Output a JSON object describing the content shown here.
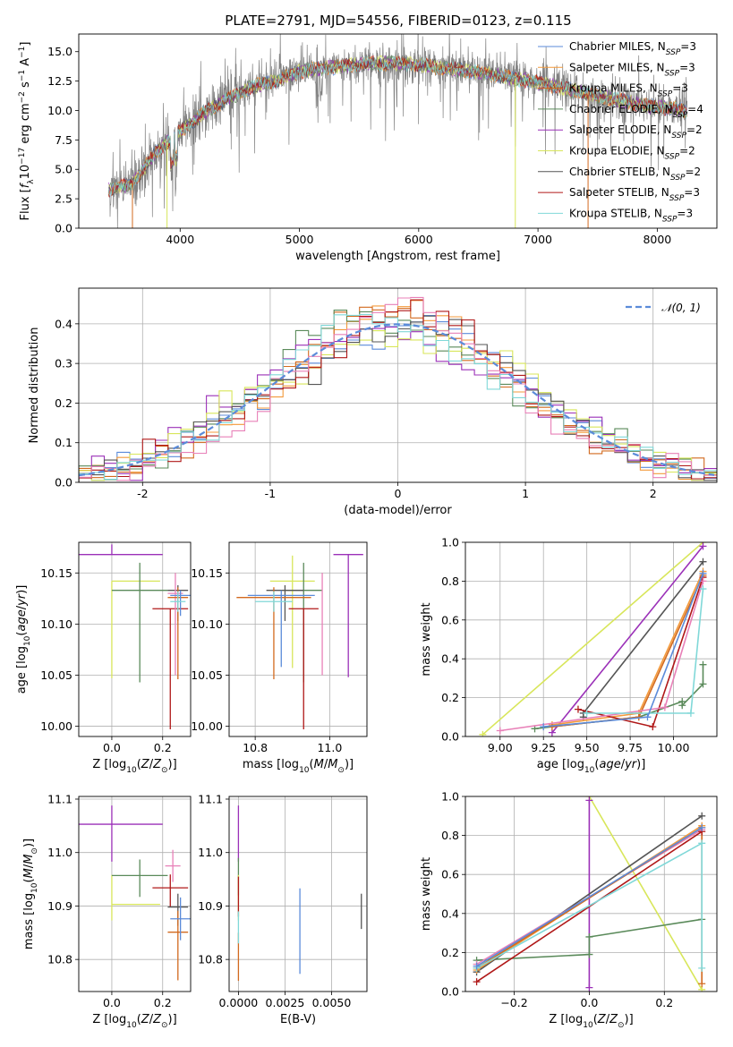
{
  "figure": {
    "title": "PLATE=2791, MJD=54556, FIBERID=0123, z=0.115"
  },
  "colors": {
    "Chabrier MILES": "#5b8bd9",
    "Salpeter MILES": "#f39a3b",
    "Kroupa MILES": "#d2691e",
    "Chabrier ELODIE": "#5a8a5a",
    "Salpeter ELODIE": "#9b30b8",
    "Kroupa ELODIE": "#d8e65a",
    "Chabrier STELIB": "#555555",
    "Salpeter STELIB": "#b01818",
    "Kroupa STELIB": "#80d8d8",
    "Pink": "#e880b8",
    "Normal": "#5b8bd9",
    "Data": "#808080"
  },
  "chart_data": [
    {
      "id": "spectrum",
      "type": "line",
      "xlabel": "wavelength [Angstrom, rest frame]",
      "ylabel": "Flux [f_λ10^-17 erg cm^-2 s^-1 A^-1]",
      "xlim": [
        3150,
        8500
      ],
      "ylim": [
        0,
        16.5
      ],
      "xticks": [
        4000,
        5000,
        6000,
        7000,
        8000
      ],
      "yticks": [
        0.0,
        2.5,
        5.0,
        7.5,
        10.0,
        12.5,
        15.0
      ],
      "ytick_labels": [
        "0.0",
        "2.5",
        "5.0",
        "7.5",
        "10.0",
        "12.5",
        "15.0"
      ],
      "data_envelope": [
        [
          3400,
          3.2
        ],
        [
          3600,
          3.8
        ],
        [
          3800,
          6.5
        ],
        [
          4000,
          8.2
        ],
        [
          4200,
          9.8
        ],
        [
          4400,
          11.0
        ],
        [
          4600,
          12.0
        ],
        [
          4800,
          12.5
        ],
        [
          5000,
          13.3
        ],
        [
          5200,
          13.6
        ],
        [
          5400,
          13.8
        ],
        [
          5600,
          14.0
        ],
        [
          5800,
          14.0
        ],
        [
          6000,
          13.9
        ],
        [
          6200,
          13.6
        ],
        [
          6400,
          13.4
        ],
        [
          6600,
          13.1
        ],
        [
          6800,
          12.7
        ],
        [
          7000,
          12.4
        ],
        [
          7200,
          11.9
        ],
        [
          7400,
          11.5
        ],
        [
          7600,
          11.0
        ],
        [
          7800,
          10.6
        ],
        [
          8000,
          10.3
        ],
        [
          8250,
          10.0
        ]
      ],
      "legend_position": "upper right",
      "legend": [
        {
          "label": "Chabrier MILES, N_SSP=3",
          "color_key": "Chabrier MILES"
        },
        {
          "label": "Salpeter MILES, N_SSP=3",
          "color_key": "Salpeter MILES"
        },
        {
          "label": "Kroupa MILES, N_SSP=3",
          "color_key": "Kroupa MILES"
        },
        {
          "label": "Chabrier ELODIE, N_SSP=4",
          "color_key": "Chabrier ELODIE"
        },
        {
          "label": "Salpeter ELODIE, N_SSP=2",
          "color_key": "Salpeter ELODIE"
        },
        {
          "label": "Kroupa ELODIE, N_SSP=2",
          "color_key": "Kroupa ELODIE"
        },
        {
          "label": "Chabrier STELIB, N_SSP=2",
          "color_key": "Chabrier STELIB"
        },
        {
          "label": "Salpeter STELIB, N_SSP=3",
          "color_key": "Salpeter STELIB"
        },
        {
          "label": "Kroupa STELIB, N_SSP=3",
          "color_key": "Kroupa STELIB"
        }
      ]
    },
    {
      "id": "residuals",
      "type": "line",
      "xlabel": "(data-model)/error",
      "ylabel": "Normed distribution",
      "xlim": [
        -2.5,
        2.5
      ],
      "ylim": [
        0,
        0.49
      ],
      "xticks": [
        -2,
        -1,
        0,
        1,
        2
      ],
      "yticks": [
        0.0,
        0.1,
        0.2,
        0.3,
        0.4
      ],
      "ytick_labels": [
        "0.0",
        "0.1",
        "0.2",
        "0.3",
        "0.4"
      ],
      "bin_width": 0.1,
      "legend_position": "upper right",
      "legend": [
        {
          "label": "𝒩(0, 1)",
          "color_key": "Normal"
        }
      ]
    },
    {
      "id": "age-vs-Z",
      "type": "scatter",
      "xlabel": "Z [log10(Z/Z⊙)]",
      "ylabel": "age [log10(age/yr)]",
      "xlim": [
        -0.13,
        0.31
      ],
      "ylim": [
        9.99,
        10.18
      ],
      "xticks": [
        0.0,
        0.2
      ],
      "xtick_labels": [
        "0.0",
        "0.2"
      ],
      "yticks": [
        10.0,
        10.05,
        10.1,
        10.15
      ],
      "ytick_labels": [
        "10.00",
        "10.05",
        "10.10",
        "10.15"
      ],
      "points": [
        {
          "c": "Salpeter ELODIE",
          "x": 0.0,
          "y": 10.168,
          "xerr": [
            0.2,
            0.2
          ],
          "yerr": [
            0.0,
            0.01
          ]
        },
        {
          "c": "Kroupa ELODIE",
          "x": 0.0,
          "y": 10.142,
          "xerr": [
            0.0,
            0.19
          ],
          "yerr": [
            0.095,
            0.0
          ]
        },
        {
          "c": "Chabrier ELODIE",
          "x": 0.11,
          "y": 10.133,
          "xerr": [
            0.11,
            0.11
          ],
          "yerr": [
            0.09,
            0.027
          ]
        },
        {
          "c": "Salpeter STELIB",
          "x": 0.23,
          "y": 10.115,
          "xerr": [
            0.07,
            0.07
          ],
          "yerr": [
            0.118,
            0.0
          ]
        },
        {
          "c": "Chabrier STELIB",
          "x": 0.26,
          "y": 10.133,
          "xerr": [
            0.04,
            0.04
          ],
          "yerr": [
            0.03,
            0.005
          ]
        },
        {
          "c": "Pink",
          "x": 0.25,
          "y": 10.13,
          "xerr": [
            0.03,
            0.03
          ],
          "yerr": [
            0.08,
            0.02
          ]
        },
        {
          "c": "Kroupa MILES",
          "x": 0.26,
          "y": 10.126,
          "xerr": [
            0.04,
            0.04
          ],
          "yerr": [
            0.08,
            0.01
          ]
        },
        {
          "c": "Chabrier MILES",
          "x": 0.27,
          "y": 10.128,
          "xerr": [
            0.04,
            0.04
          ],
          "yerr": [
            0.02,
            0.005
          ]
        },
        {
          "c": "Kroupa STELIB",
          "x": 0.26,
          "y": 10.122,
          "xerr": [
            0.03,
            0.03
          ],
          "yerr": [
            0.01,
            0.01
          ]
        }
      ]
    },
    {
      "id": "age-vs-mass",
      "type": "scatter",
      "xlabel": "mass [log10(M/M⊙)]",
      "ylabel": "",
      "xlim": [
        10.73,
        11.1
      ],
      "ylim": [
        9.99,
        10.18
      ],
      "xticks": [
        10.8,
        11.0
      ],
      "xtick_labels": [
        "10.8",
        "11.0"
      ],
      "yticks": [
        10.0,
        10.05,
        10.1,
        10.15
      ],
      "ytick_labels": [
        "10.00",
        "10.05",
        "10.10",
        "10.15"
      ],
      "points": [
        {
          "c": "Salpeter ELODIE",
          "x": 11.05,
          "y": 10.168,
          "xerr": [
            0.04,
            0.04
          ],
          "yerr": [
            0.12,
            0.0
          ]
        },
        {
          "c": "Kroupa ELODIE",
          "x": 10.9,
          "y": 10.142,
          "xerr": [
            0.06,
            0.06
          ],
          "yerr": [
            0.085,
            0.025
          ]
        },
        {
          "c": "Chabrier ELODIE",
          "x": 10.93,
          "y": 10.133,
          "xerr": [
            0.05,
            0.05
          ],
          "yerr": [
            0.09,
            0.027
          ]
        },
        {
          "c": "Salpeter STELIB",
          "x": 10.93,
          "y": 10.115,
          "xerr": [
            0.04,
            0.04
          ],
          "yerr": [
            0.118,
            0.0
          ]
        },
        {
          "c": "Chabrier STELIB",
          "x": 10.88,
          "y": 10.133,
          "xerr": [
            0.05,
            0.05
          ],
          "yerr": [
            0.03,
            0.005
          ]
        },
        {
          "c": "Pink",
          "x": 10.98,
          "y": 10.13,
          "xerr": [
            0.0,
            0.0
          ],
          "yerr": [
            0.08,
            0.02
          ]
        },
        {
          "c": "Kroupa MILES",
          "x": 10.85,
          "y": 10.126,
          "xerr": [
            0.1,
            0.1
          ],
          "yerr": [
            0.08,
            0.01
          ]
        },
        {
          "c": "Chabrier MILES",
          "x": 10.87,
          "y": 10.128,
          "xerr": [
            0.09,
            0.09
          ],
          "yerr": [
            0.07,
            0.005
          ]
        },
        {
          "c": "Kroupa STELIB",
          "x": 10.85,
          "y": 10.122,
          "xerr": [
            0.05,
            0.05
          ],
          "yerr": [
            0.01,
            0.01
          ]
        }
      ]
    },
    {
      "id": "mass-weight-vs-age",
      "type": "line",
      "xlabel": "age [log10(age/yr)]",
      "ylabel": "mass weight",
      "xlim": [
        8.8,
        10.25
      ],
      "ylim": [
        0,
        1.0
      ],
      "xticks": [
        9.0,
        9.25,
        9.5,
        9.75,
        10.0
      ],
      "xtick_labels": [
        "9.00",
        "9.25",
        "9.50",
        "9.75",
        "10.00"
      ],
      "yticks": [
        0.0,
        0.2,
        0.4,
        0.6,
        0.8,
        1.0
      ],
      "ytick_labels": [
        "0.0",
        "0.2",
        "0.4",
        "0.6",
        "0.8",
        "1.0"
      ],
      "series": [
        {
          "c": "Kroupa ELODIE",
          "x": [
            8.9,
            10.17
          ],
          "y": [
            0.01,
            1.0
          ]
        },
        {
          "c": "Salpeter ELODIE",
          "x": [
            9.3,
            10.17
          ],
          "y": [
            0.02,
            0.98
          ]
        },
        {
          "c": "Chabrier STELIB",
          "x": [
            9.48,
            9.48,
            10.17
          ],
          "y": [
            0.1,
            0.12,
            0.9
          ]
        },
        {
          "c": "Chabrier ELODIE",
          "x": [
            9.2,
            9.8,
            10.05,
            10.05,
            10.17,
            10.17
          ],
          "y": [
            0.04,
            0.1,
            0.18,
            0.16,
            0.27,
            0.37
          ]
        },
        {
          "c": "Salpeter MILES",
          "x": [
            9.3,
            9.8,
            10.17
          ],
          "y": [
            0.06,
            0.12,
            0.85
          ]
        },
        {
          "c": "Kroupa MILES",
          "x": [
            9.3,
            9.8,
            10.17
          ],
          "y": [
            0.05,
            0.1,
            0.83
          ]
        },
        {
          "c": "Salpeter STELIB",
          "x": [
            9.45,
            9.88,
            10.17
          ],
          "y": [
            0.14,
            0.05,
            0.82
          ]
        },
        {
          "c": "Pink",
          "x": [
            9.0,
            9.95,
            10.17
          ],
          "y": [
            0.03,
            0.15,
            0.8
          ]
        },
        {
          "c": "Kroupa STELIB",
          "x": [
            9.5,
            10.1,
            10.17
          ],
          "y": [
            0.12,
            0.12,
            0.76
          ]
        },
        {
          "c": "Chabrier MILES",
          "x": [
            9.25,
            9.85,
            10.17
          ],
          "y": [
            0.05,
            0.1,
            0.84
          ]
        }
      ]
    },
    {
      "id": "mass-vs-Z",
      "type": "scatter",
      "xlabel": "Z [log10(Z/Z⊙)]",
      "ylabel": "mass [log10(M/M⊙)]",
      "xlim": [
        -0.13,
        0.31
      ],
      "ylim": [
        10.74,
        11.105
      ],
      "xticks": [
        0.0,
        0.2
      ],
      "xtick_labels": [
        "0.0",
        "0.2"
      ],
      "yticks": [
        10.8,
        10.9,
        11.0,
        11.1
      ],
      "ytick_labels": [
        "10.8",
        "10.9",
        "11.0",
        "11.1"
      ],
      "points": [
        {
          "c": "Salpeter ELODIE",
          "x": 0.0,
          "y": 11.053,
          "xerr": [
            0.2,
            0.2
          ],
          "yerr": [
            0.07,
            0.035
          ]
        },
        {
          "c": "Kroupa ELODIE",
          "x": 0.0,
          "y": 10.903,
          "xerr": [
            0.0,
            0.19
          ],
          "yerr": [
            0.03,
            0.055
          ]
        },
        {
          "c": "Chabrier ELODIE",
          "x": 0.11,
          "y": 10.957,
          "xerr": [
            0.11,
            0.11
          ],
          "yerr": [
            0.04,
            0.03
          ]
        },
        {
          "c": "Salpeter STELIB",
          "x": 0.23,
          "y": 10.934,
          "xerr": [
            0.07,
            0.07
          ],
          "yerr": [
            0.035,
            0.025
          ]
        },
        {
          "c": "Chabrier STELIB",
          "x": 0.26,
          "y": 10.898,
          "xerr": [
            0.04,
            0.04
          ],
          "yerr": [
            0.035,
            0.025
          ]
        },
        {
          "c": "Pink",
          "x": 0.24,
          "y": 10.975,
          "xerr": [
            0.03,
            0.03
          ],
          "yerr": [
            0.03,
            0.03
          ]
        },
        {
          "c": "Kroupa MILES",
          "x": 0.26,
          "y": 10.851,
          "xerr": [
            0.04,
            0.04
          ],
          "yerr": [
            0.09,
            0.04
          ]
        },
        {
          "c": "Chabrier MILES",
          "x": 0.27,
          "y": 10.876,
          "xerr": [
            0.04,
            0.04
          ],
          "yerr": [
            0.04,
            0.04
          ]
        }
      ]
    },
    {
      "id": "mass-vs-ebv",
      "type": "scatter",
      "xlabel": "E(B-V)",
      "ylabel": "",
      "xlim": [
        -0.0005,
        0.0069
      ],
      "ylim": [
        10.74,
        11.105
      ],
      "xticks": [
        0.0,
        0.0025,
        0.005
      ],
      "xtick_labels": [
        "0.0000",
        "0.0025",
        "0.0050"
      ],
      "yticks": [
        10.8,
        10.9,
        11.0,
        11.1
      ],
      "ytick_labels": [
        "10.8",
        "10.9",
        "11.0",
        "11.1"
      ],
      "points": [
        {
          "c": "Salpeter ELODIE",
          "x": 0.0,
          "y": 11.053,
          "xerr": [
            0,
            0
          ],
          "yerr": [
            0.07,
            0.035
          ]
        },
        {
          "c": "Chabrier ELODIE",
          "x": 0.0,
          "y": 10.96,
          "xerr": [
            0,
            0
          ],
          "yerr": [
            0.04,
            0.03
          ]
        },
        {
          "c": "Kroupa ELODIE",
          "x": 0.0,
          "y": 10.903,
          "xerr": [
            0,
            0
          ],
          "yerr": [
            0.03,
            0.055
          ]
        },
        {
          "c": "Salpeter STELIB",
          "x": 0.0,
          "y": 10.915,
          "xerr": [
            0,
            0
          ],
          "yerr": [
            0.035,
            0.04
          ]
        },
        {
          "c": "Kroupa MILES",
          "x": 0.0,
          "y": 10.81,
          "xerr": [
            0,
            0
          ],
          "yerr": [
            0.05,
            0.04
          ]
        },
        {
          "c": "Kroupa STELIB",
          "x": 0.0,
          "y": 10.86,
          "xerr": [
            0,
            0
          ],
          "yerr": [
            0.03,
            0.03
          ]
        },
        {
          "c": "Chabrier MILES",
          "x": 0.0033,
          "y": 10.853,
          "xerr": [
            0,
            0
          ],
          "yerr": [
            0.08,
            0.08
          ]
        },
        {
          "c": "Chabrier STELIB",
          "x": 0.0066,
          "y": 10.89,
          "xerr": [
            0,
            0
          ],
          "yerr": [
            0.033,
            0.033
          ]
        }
      ]
    },
    {
      "id": "mass-weight-vs-Z",
      "type": "line",
      "xlabel": "Z [log10(Z/Z⊙)]",
      "ylabel": "mass weight",
      "xlim": [
        -0.33,
        0.34
      ],
      "ylim": [
        0,
        1.0
      ],
      "xticks": [
        -0.2,
        0.0,
        0.2
      ],
      "xtick_labels": [
        "−0.2",
        "0.0",
        "0.2"
      ],
      "yticks": [
        0.0,
        0.2,
        0.4,
        0.6,
        0.8,
        1.0
      ],
      "ytick_labels": [
        "0.0",
        "0.2",
        "0.4",
        "0.6",
        "0.8",
        "1.0"
      ],
      "series": [
        {
          "c": "Kroupa ELODIE",
          "x": [
            0.0,
            0.3
          ],
          "y": [
            1.0,
            0.01
          ]
        },
        {
          "c": "Salpeter ELODIE",
          "x": [
            0.0,
            0.0
          ],
          "y": [
            0.02,
            0.98
          ]
        },
        {
          "c": "Chabrier ELODIE",
          "x": [
            -0.3,
            0.0,
            0.0,
            0.3
          ],
          "y": [
            0.16,
            0.19,
            0.28,
            0.37
          ]
        },
        {
          "c": "Chabrier STELIB",
          "x": [
            -0.3,
            0.3
          ],
          "y": [
            0.1,
            0.9
          ]
        },
        {
          "c": "Pink",
          "x": [
            -0.3,
            0.3
          ],
          "y": [
            0.14,
            0.83
          ]
        },
        {
          "c": "Salpeter MILES",
          "x": [
            -0.3,
            0.3
          ],
          "y": [
            0.11,
            0.85
          ]
        },
        {
          "c": "Kroupa MILES",
          "x": [
            -0.3,
            0.3,
            0.3
          ],
          "y": [
            0.12,
            0.84,
            0.04
          ]
        },
        {
          "c": "Salpeter STELIB",
          "x": [
            -0.3,
            0.3
          ],
          "y": [
            0.05,
            0.82
          ]
        },
        {
          "c": "Kroupa STELIB",
          "x": [
            -0.3,
            0.3,
            0.3
          ],
          "y": [
            0.12,
            0.76,
            0.12
          ]
        },
        {
          "c": "Chabrier MILES",
          "x": [
            -0.3,
            0.3
          ],
          "y": [
            0.13,
            0.84
          ]
        }
      ]
    }
  ]
}
